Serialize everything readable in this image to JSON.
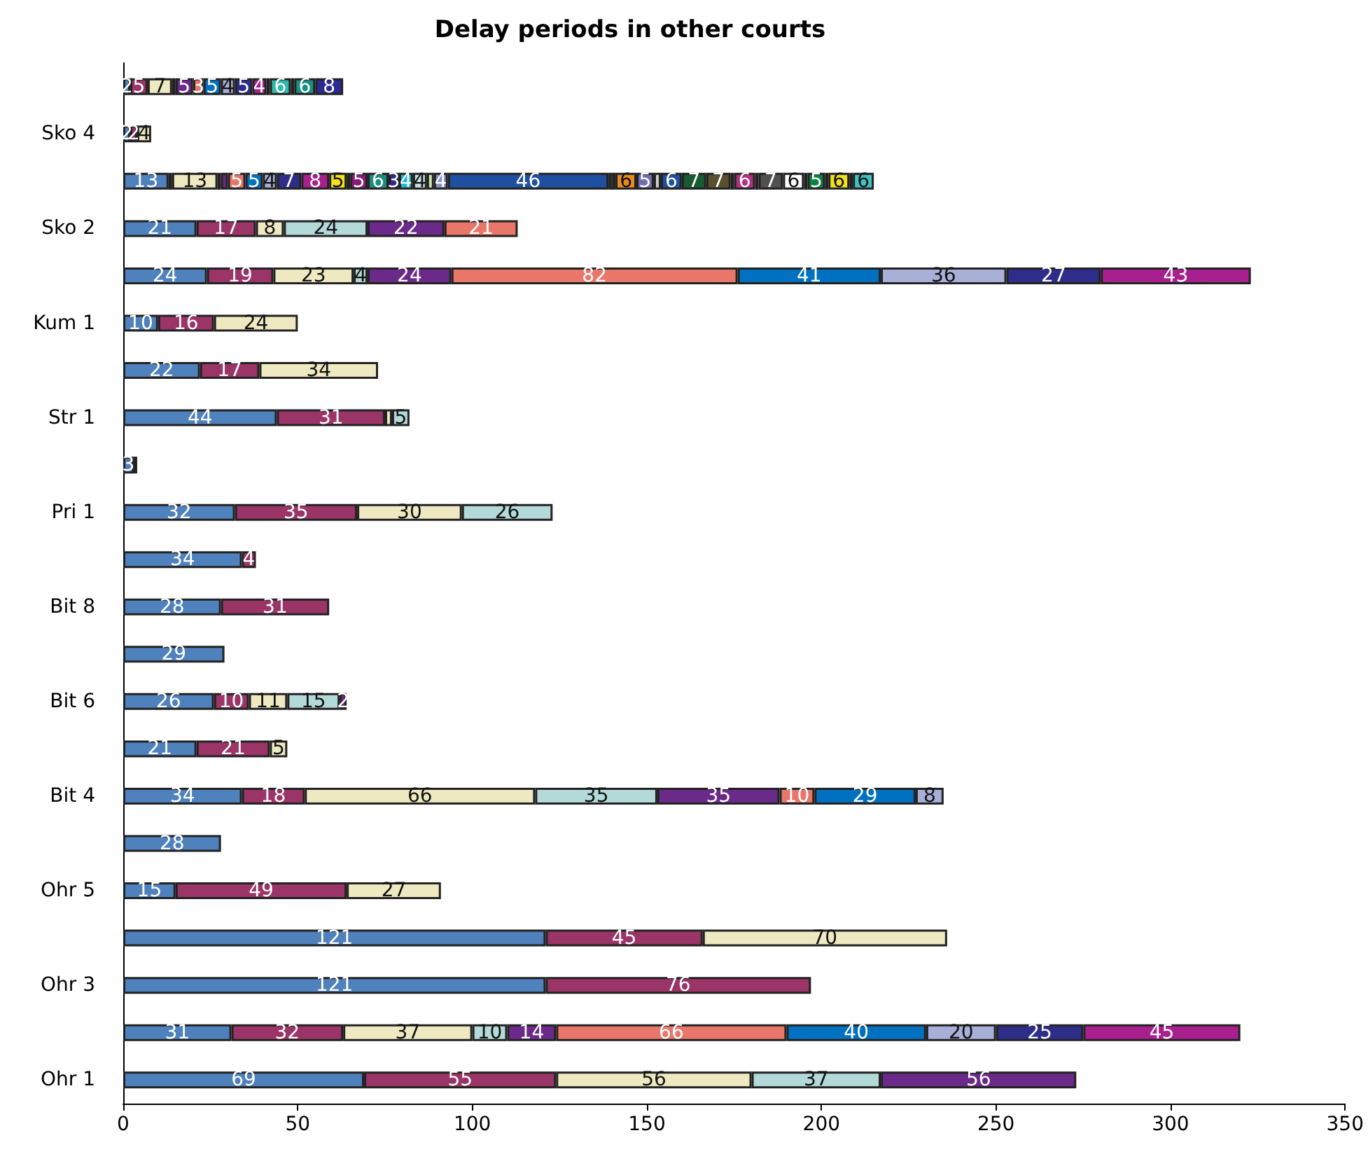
{
  "chart_data": {
    "type": "bar",
    "orientation": "horizontal",
    "stacked": true,
    "title": "Delay periods in other courts",
    "categories": [
      null,
      "Sko 4",
      null,
      "Sko 2",
      null,
      "Kum 1",
      null,
      "Str 1",
      null,
      "Pri 1",
      null,
      "Bit 8",
      null,
      "Bit 6",
      null,
      "Bit 4",
      null,
      "Ohr 5",
      null,
      "Ohr 3",
      null,
      "Ohr 1"
    ],
    "xlim": [
      0,
      350
    ],
    "xticks": [
      0,
      50,
      100,
      150,
      200,
      250,
      300,
      350
    ],
    "grid": false,
    "series": [
      {
        "color": "#4f81bd",
        "values": [
          2,
          2,
          13,
          21,
          24,
          10,
          22,
          44,
          3,
          32,
          34,
          28,
          29,
          26,
          21,
          34,
          28,
          15,
          121,
          121,
          31,
          69
        ],
        "value_labels": [
          "2",
          "2",
          "13",
          "21",
          "24",
          "10",
          "22",
          "44",
          "3",
          "32",
          "34",
          "28",
          "29",
          "26",
          "21",
          "34",
          "28",
          "15",
          "121",
          "121",
          "31",
          "69"
        ]
      },
      {
        "color": "#9b3467",
        "values": [
          5,
          2,
          1,
          17,
          19,
          16,
          17,
          31,
          1,
          35,
          4,
          31,
          null,
          10,
          21,
          18,
          null,
          49,
          45,
          76,
          32,
          55
        ],
        "value_labels": [
          "5",
          "2",
          null,
          "17",
          "19",
          "16",
          "17",
          "31",
          null,
          "35",
          "4",
          "31",
          null,
          "10",
          "21",
          "18",
          null,
          "49",
          "45",
          "76",
          "32",
          "55"
        ]
      },
      {
        "color": "#efe9c2",
        "values": [
          7,
          4,
          13,
          8,
          23,
          24,
          34,
          2,
          null,
          30,
          null,
          null,
          null,
          11,
          5,
          66,
          null,
          27,
          70,
          null,
          37,
          56
        ],
        "value_labels": [
          "7",
          "4",
          "13",
          "8",
          "23",
          "24",
          "34",
          null,
          null,
          "30",
          null,
          null,
          null,
          "11",
          "5",
          "66",
          null,
          "27",
          "70",
          null,
          "37",
          "56"
        ]
      },
      {
        "color": "#b3d9d9",
        "values": [
          1,
          null,
          1,
          24,
          4,
          null,
          null,
          5,
          null,
          26,
          null,
          null,
          null,
          15,
          null,
          35,
          null,
          null,
          null,
          null,
          10,
          37
        ],
        "value_labels": [
          null,
          null,
          null,
          "24",
          "4",
          null,
          null,
          "5",
          null,
          "26",
          null,
          null,
          null,
          "15",
          null,
          "35",
          null,
          null,
          null,
          null,
          "10",
          "37"
        ]
      },
      {
        "color": "#6b2a8a",
        "values": [
          5,
          null,
          2,
          22,
          24,
          null,
          null,
          null,
          null,
          null,
          null,
          null,
          null,
          2,
          null,
          35,
          null,
          null,
          null,
          null,
          14,
          56
        ],
        "value_labels": [
          "5",
          null,
          null,
          "22",
          "24",
          null,
          null,
          null,
          null,
          null,
          null,
          null,
          null,
          "2",
          null,
          "35",
          null,
          null,
          null,
          null,
          "14",
          "56"
        ]
      },
      {
        "color": "#e8776a",
        "values": [
          3,
          null,
          5,
          21,
          82,
          null,
          null,
          null,
          null,
          null,
          null,
          null,
          null,
          null,
          null,
          10,
          null,
          null,
          null,
          null,
          66,
          null
        ],
        "value_labels": [
          "3",
          null,
          "5",
          "21",
          "82",
          null,
          null,
          null,
          null,
          null,
          null,
          null,
          null,
          null,
          null,
          "10",
          null,
          null,
          null,
          null,
          "66",
          null
        ]
      },
      {
        "color": "#0070c0",
        "values": [
          5,
          null,
          5,
          null,
          41,
          null,
          null,
          null,
          null,
          null,
          null,
          null,
          null,
          null,
          null,
          29,
          null,
          null,
          null,
          null,
          40,
          null
        ],
        "value_labels": [
          "5",
          null,
          "5",
          null,
          "41",
          null,
          null,
          null,
          null,
          null,
          null,
          null,
          null,
          null,
          null,
          "29",
          null,
          null,
          null,
          null,
          "40",
          null
        ]
      },
      {
        "color": "#a8b0d8",
        "values": [
          4,
          null,
          4,
          null,
          36,
          null,
          null,
          null,
          null,
          null,
          null,
          null,
          null,
          null,
          null,
          8,
          null,
          null,
          null,
          null,
          20,
          null
        ],
        "value_labels": [
          "4",
          null,
          "4",
          null,
          "36",
          null,
          null,
          null,
          null,
          null,
          null,
          null,
          null,
          null,
          null,
          "8",
          null,
          null,
          null,
          null,
          "20",
          null
        ]
      },
      {
        "color": "#2e2e8a",
        "values": [
          5,
          null,
          7,
          null,
          27,
          null,
          null,
          null,
          null,
          null,
          null,
          null,
          null,
          null,
          null,
          null,
          null,
          null,
          null,
          null,
          25,
          null
        ],
        "value_labels": [
          "5",
          null,
          "7",
          null,
          "27",
          null,
          null,
          null,
          null,
          null,
          null,
          null,
          null,
          null,
          null,
          null,
          null,
          null,
          null,
          null,
          "25",
          null
        ]
      },
      {
        "color": "#a8208e",
        "values": [
          4,
          null,
          8,
          null,
          43,
          null,
          null,
          null,
          null,
          null,
          null,
          null,
          null,
          null,
          null,
          null,
          null,
          null,
          null,
          null,
          45,
          null
        ],
        "value_labels": [
          "4",
          null,
          "8",
          null,
          "43",
          null,
          null,
          null,
          null,
          null,
          null,
          null,
          null,
          null,
          null,
          null,
          null,
          null,
          null,
          null,
          "45",
          null
        ]
      },
      {
        "color": "#f5e21a",
        "values": [
          1,
          null,
          5,
          null,
          null,
          null,
          null,
          null,
          null,
          null,
          null,
          null,
          null,
          null,
          null,
          null,
          null,
          null,
          null,
          null,
          null,
          null
        ],
        "value_labels": [
          null,
          null,
          "5",
          null,
          null,
          null,
          null,
          null,
          null,
          null,
          null,
          null,
          null,
          null,
          null,
          null,
          null,
          null,
          null,
          null,
          null,
          null
        ]
      },
      {
        "color": "#2fb9ab",
        "values": [
          6,
          null,
          1,
          null,
          null,
          null,
          null,
          null,
          null,
          null,
          null,
          null,
          null,
          null,
          null,
          null,
          null,
          null,
          null,
          null,
          null,
          null
        ],
        "value_labels": [
          "6",
          null,
          null,
          null,
          null,
          null,
          null,
          null,
          null,
          null,
          null,
          null,
          null,
          null,
          null,
          null,
          null,
          null,
          null,
          null,
          null,
          null
        ]
      },
      {
        "color": "#8b1a7a",
        "values": [
          1,
          null,
          5,
          null,
          null,
          null,
          null,
          null,
          null,
          null,
          null,
          null,
          null,
          null,
          null,
          null,
          null,
          null,
          null,
          null,
          null,
          null
        ],
        "value_labels": [
          null,
          null,
          "5",
          null,
          null,
          null,
          null,
          null,
          null,
          null,
          null,
          null,
          null,
          null,
          null,
          null,
          null,
          null,
          null,
          null,
          null,
          null
        ]
      },
      {
        "color": "#1a8f80",
        "values": [
          6,
          null,
          6,
          null,
          null,
          null,
          null,
          null,
          null,
          null,
          null,
          null,
          null,
          null,
          null,
          null,
          null,
          null,
          null,
          null,
          null,
          null
        ],
        "value_labels": [
          "6",
          null,
          "6",
          null,
          null,
          null,
          null,
          null,
          null,
          null,
          null,
          null,
          null,
          null,
          null,
          null,
          null,
          null,
          null,
          null,
          null,
          null
        ]
      },
      {
        "color": "#2a2a90",
        "values": [
          8,
          null,
          3,
          null,
          null,
          null,
          null,
          null,
          null,
          null,
          null,
          null,
          null,
          null,
          null,
          null,
          null,
          null,
          null,
          null,
          null,
          null
        ],
        "value_labels": [
          "8",
          null,
          "3",
          null,
          null,
          null,
          null,
          null,
          null,
          null,
          null,
          null,
          null,
          null,
          null,
          null,
          null,
          null,
          null,
          null,
          null,
          null
        ]
      },
      {
        "color": "#1fb6d6",
        "values": [
          null,
          null,
          4,
          null,
          null,
          null,
          null,
          null,
          null,
          null,
          null,
          null,
          null,
          null,
          null,
          null,
          null,
          null,
          null,
          null,
          null,
          null
        ],
        "value_labels": [
          null,
          null,
          "4",
          null,
          null,
          null,
          null,
          null,
          null,
          null,
          null,
          null,
          null,
          null,
          null,
          null,
          null,
          null,
          null,
          null,
          null,
          null
        ]
      },
      {
        "color": "#c8e0e0",
        "values": [
          null,
          null,
          4,
          null,
          null,
          null,
          null,
          null,
          null,
          null,
          null,
          null,
          null,
          null,
          null,
          null,
          null,
          null,
          null,
          null,
          null,
          null
        ],
        "value_labels": [
          null,
          null,
          "4",
          null,
          null,
          null,
          null,
          null,
          null,
          null,
          null,
          null,
          null,
          null,
          null,
          null,
          null,
          null,
          null,
          null,
          null,
          null
        ]
      },
      {
        "color": "#c8e8b0",
        "values": [
          null,
          null,
          2,
          null,
          null,
          null,
          null,
          null,
          null,
          null,
          null,
          null,
          null,
          null,
          null,
          null,
          null,
          null,
          null,
          null,
          null,
          null
        ],
        "value_labels": [
          null,
          null,
          null,
          null,
          null,
          null,
          null,
          null,
          null,
          null,
          null,
          null,
          null,
          null,
          null,
          null,
          null,
          null,
          null,
          null,
          null,
          null
        ]
      },
      {
        "color": "#8a90c8",
        "values": [
          null,
          null,
          4,
          null,
          null,
          null,
          null,
          null,
          null,
          null,
          null,
          null,
          null,
          null,
          null,
          null,
          null,
          null,
          null,
          null,
          null,
          null
        ],
        "value_labels": [
          null,
          null,
          "4",
          null,
          null,
          null,
          null,
          null,
          null,
          null,
          null,
          null,
          null,
          null,
          null,
          null,
          null,
          null,
          null,
          null,
          null,
          null
        ]
      },
      {
        "color": "#1f4fa0",
        "values": [
          null,
          null,
          46,
          null,
          null,
          null,
          null,
          null,
          null,
          null,
          null,
          null,
          null,
          null,
          null,
          null,
          null,
          null,
          null,
          null,
          null,
          null
        ],
        "value_labels": [
          null,
          null,
          "46",
          null,
          null,
          null,
          null,
          null,
          null,
          null,
          null,
          null,
          null,
          null,
          null,
          null,
          null,
          null,
          null,
          null,
          null,
          null
        ]
      },
      {
        "color": "#303030",
        "values": [
          null,
          null,
          2,
          null,
          null,
          null,
          null,
          null,
          null,
          null,
          null,
          null,
          null,
          null,
          null,
          null,
          null,
          null,
          null,
          null,
          null,
          null
        ],
        "value_labels": [
          null,
          null,
          null,
          null,
          null,
          null,
          null,
          null,
          null,
          null,
          null,
          null,
          null,
          null,
          null,
          null,
          null,
          null,
          null,
          null,
          null,
          null
        ]
      },
      {
        "color": "#e88a20",
        "values": [
          null,
          null,
          6,
          null,
          null,
          null,
          null,
          null,
          null,
          null,
          null,
          null,
          null,
          null,
          null,
          null,
          null,
          null,
          null,
          null,
          null,
          null
        ],
        "value_labels": [
          null,
          null,
          "6",
          null,
          null,
          null,
          null,
          null,
          null,
          null,
          null,
          null,
          null,
          null,
          null,
          null,
          null,
          null,
          null,
          null,
          null,
          null
        ]
      },
      {
        "color": "#7070b0",
        "values": [
          null,
          null,
          5,
          null,
          null,
          null,
          null,
          null,
          null,
          null,
          null,
          null,
          null,
          null,
          null,
          null,
          null,
          null,
          null,
          null,
          null,
          null
        ],
        "value_labels": [
          null,
          null,
          "5",
          null,
          null,
          null,
          null,
          null,
          null,
          null,
          null,
          null,
          null,
          null,
          null,
          null,
          null,
          null,
          null,
          null,
          null,
          null
        ]
      },
      {
        "color": "#d0d0d0",
        "values": [
          null,
          null,
          2,
          null,
          null,
          null,
          null,
          null,
          null,
          null,
          null,
          null,
          null,
          null,
          null,
          null,
          null,
          null,
          null,
          null,
          null,
          null
        ],
        "value_labels": [
          null,
          null,
          null,
          null,
          null,
          null,
          null,
          null,
          null,
          null,
          null,
          null,
          null,
          null,
          null,
          null,
          null,
          null,
          null,
          null,
          null,
          null
        ]
      },
      {
        "color": "#2050a0",
        "values": [
          null,
          null,
          6,
          null,
          null,
          null,
          null,
          null,
          null,
          null,
          null,
          null,
          null,
          null,
          null,
          null,
          null,
          null,
          null,
          null,
          null,
          null
        ],
        "value_labels": [
          null,
          null,
          "6",
          null,
          null,
          null,
          null,
          null,
          null,
          null,
          null,
          null,
          null,
          null,
          null,
          null,
          null,
          null,
          null,
          null,
          null,
          null
        ]
      },
      {
        "color": "#1a5a30",
        "values": [
          null,
          null,
          7,
          null,
          null,
          null,
          null,
          null,
          null,
          null,
          null,
          null,
          null,
          null,
          null,
          null,
          null,
          null,
          null,
          null,
          null,
          null
        ],
        "value_labels": [
          null,
          null,
          "7",
          null,
          null,
          null,
          null,
          null,
          null,
          null,
          null,
          null,
          null,
          null,
          null,
          null,
          null,
          null,
          null,
          null,
          null,
          null
        ]
      },
      {
        "color": "#5a5030",
        "values": [
          null,
          null,
          7,
          null,
          null,
          null,
          null,
          null,
          null,
          null,
          null,
          null,
          null,
          null,
          null,
          null,
          null,
          null,
          null,
          null,
          null,
          null
        ],
        "value_labels": [
          null,
          null,
          "7",
          null,
          null,
          null,
          null,
          null,
          null,
          null,
          null,
          null,
          null,
          null,
          null,
          null,
          null,
          null,
          null,
          null,
          null,
          null
        ]
      },
      {
        "color": "#d02040",
        "values": [
          null,
          null,
          1,
          null,
          null,
          null,
          null,
          null,
          null,
          null,
          null,
          null,
          null,
          null,
          null,
          null,
          null,
          null,
          null,
          null,
          null,
          null
        ],
        "value_labels": [
          null,
          null,
          null,
          null,
          null,
          null,
          null,
          null,
          null,
          null,
          null,
          null,
          null,
          null,
          null,
          null,
          null,
          null,
          null,
          null,
          null,
          null
        ]
      },
      {
        "color": "#b03080",
        "values": [
          null,
          null,
          6,
          null,
          null,
          null,
          null,
          null,
          null,
          null,
          null,
          null,
          null,
          null,
          null,
          null,
          null,
          null,
          null,
          null,
          null,
          null
        ],
        "value_labels": [
          null,
          null,
          "6",
          null,
          null,
          null,
          null,
          null,
          null,
          null,
          null,
          null,
          null,
          null,
          null,
          null,
          null,
          null,
          null,
          null,
          null,
          null
        ]
      },
      {
        "color": "#b0b0b0",
        "values": [
          null,
          null,
          1,
          null,
          null,
          null,
          null,
          null,
          null,
          null,
          null,
          null,
          null,
          null,
          null,
          null,
          null,
          null,
          null,
          null,
          null,
          null
        ],
        "value_labels": [
          null,
          null,
          null,
          null,
          null,
          null,
          null,
          null,
          null,
          null,
          null,
          null,
          null,
          null,
          null,
          null,
          null,
          null,
          null,
          null,
          null,
          null
        ]
      },
      {
        "color": "#505050",
        "values": [
          null,
          null,
          7,
          null,
          null,
          null,
          null,
          null,
          null,
          null,
          null,
          null,
          null,
          null,
          null,
          null,
          null,
          null,
          null,
          null,
          null,
          null
        ],
        "value_labels": [
          null,
          null,
          "7",
          null,
          null,
          null,
          null,
          null,
          null,
          null,
          null,
          null,
          null,
          null,
          null,
          null,
          null,
          null,
          null,
          null,
          null,
          null
        ]
      },
      {
        "color": "#ffffff",
        "values": [
          null,
          null,
          6,
          null,
          null,
          null,
          null,
          null,
          null,
          null,
          null,
          null,
          null,
          null,
          null,
          null,
          null,
          null,
          null,
          null,
          null,
          null
        ],
        "value_labels": [
          null,
          null,
          "6",
          null,
          null,
          null,
          null,
          null,
          null,
          null,
          null,
          null,
          null,
          null,
          null,
          null,
          null,
          null,
          null,
          null,
          null,
          null
        ]
      },
      {
        "color": "#d02041",
        "values": [
          null,
          null,
          1,
          null,
          null,
          null,
          null,
          null,
          null,
          null,
          null,
          null,
          null,
          null,
          null,
          null,
          null,
          null,
          null,
          null,
          null,
          null
        ],
        "value_labels": [
          null,
          null,
          null,
          null,
          null,
          null,
          null,
          null,
          null,
          null,
          null,
          null,
          null,
          null,
          null,
          null,
          null,
          null,
          null,
          null,
          null,
          null
        ]
      },
      {
        "color": "#108040",
        "values": [
          null,
          null,
          5,
          null,
          null,
          null,
          null,
          null,
          null,
          null,
          null,
          null,
          null,
          null,
          null,
          null,
          null,
          null,
          null,
          null,
          null,
          null
        ],
        "value_labels": [
          null,
          null,
          "5",
          null,
          null,
          null,
          null,
          null,
          null,
          null,
          null,
          null,
          null,
          null,
          null,
          null,
          null,
          null,
          null,
          null,
          null,
          null
        ]
      },
      {
        "color": "#3030a0",
        "values": [
          null,
          null,
          1,
          null,
          null,
          null,
          null,
          null,
          null,
          null,
          null,
          null,
          null,
          null,
          null,
          null,
          null,
          null,
          null,
          null,
          null,
          null
        ],
        "value_labels": [
          null,
          null,
          null,
          null,
          null,
          null,
          null,
          null,
          null,
          null,
          null,
          null,
          null,
          null,
          null,
          null,
          null,
          null,
          null,
          null,
          null,
          null
        ]
      },
      {
        "color": "#f0e020",
        "values": [
          null,
          null,
          6,
          null,
          null,
          null,
          null,
          null,
          null,
          null,
          null,
          null,
          null,
          null,
          null,
          null,
          null,
          null,
          null,
          null,
          null,
          null
        ],
        "value_labels": [
          null,
          null,
          "6",
          null,
          null,
          null,
          null,
          null,
          null,
          null,
          null,
          null,
          null,
          null,
          null,
          null,
          null,
          null,
          null,
          null,
          null,
          null
        ]
      },
      {
        "color": "#d03060",
        "values": [
          null,
          null,
          1,
          null,
          null,
          null,
          null,
          null,
          null,
          null,
          null,
          null,
          null,
          null,
          null,
          null,
          null,
          null,
          null,
          null,
          null,
          null
        ],
        "value_labels": [
          null,
          null,
          null,
          null,
          null,
          null,
          null,
          null,
          null,
          null,
          null,
          null,
          null,
          null,
          null,
          null,
          null,
          null,
          null,
          null,
          null,
          null
        ]
      },
      {
        "color": "#40c0c0",
        "values": [
          null,
          null,
          6,
          null,
          null,
          null,
          null,
          null,
          null,
          null,
          null,
          null,
          null,
          null,
          null,
          null,
          null,
          null,
          null,
          null,
          null,
          null
        ],
        "value_labels": [
          null,
          null,
          "6",
          null,
          null,
          null,
          null,
          null,
          null,
          null,
          null,
          null,
          null,
          null,
          null,
          null,
          null,
          null,
          null,
          null,
          null,
          null
        ]
      }
    ]
  }
}
